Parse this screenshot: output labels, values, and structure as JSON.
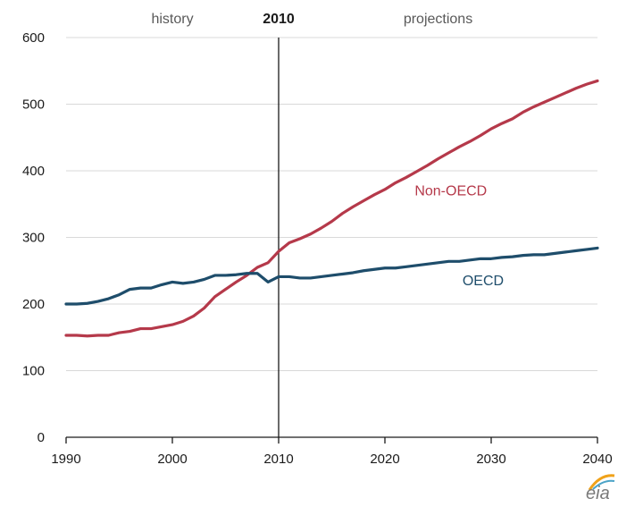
{
  "chart_data": {
    "type": "line",
    "title": "",
    "xlabel": "",
    "ylabel": "",
    "xlim": [
      1990,
      2040
    ],
    "ylim": [
      0,
      600
    ],
    "x_ticks": [
      1990,
      2000,
      2010,
      2020,
      2030,
      2040
    ],
    "y_ticks": [
      0,
      100,
      200,
      300,
      400,
      500,
      600
    ],
    "grid": "horizontal",
    "divider": {
      "x": 2010,
      "label": "2010"
    },
    "regions": {
      "left": "history",
      "right": "projections"
    },
    "series": [
      {
        "name": "Non-OECD",
        "color": "#b5394a",
        "x": [
          1990,
          1991,
          1992,
          1993,
          1994,
          1995,
          1996,
          1997,
          1998,
          1999,
          2000,
          2001,
          2002,
          2003,
          2004,
          2005,
          2006,
          2007,
          2008,
          2009,
          2010,
          2011,
          2012,
          2013,
          2014,
          2015,
          2016,
          2017,
          2018,
          2019,
          2020,
          2021,
          2022,
          2023,
          2024,
          2025,
          2026,
          2027,
          2028,
          2029,
          2030,
          2031,
          2032,
          2033,
          2034,
          2035,
          2036,
          2037,
          2038,
          2039,
          2040
        ],
        "values": [
          153,
          153,
          152,
          153,
          153,
          157,
          159,
          163,
          163,
          166,
          169,
          174,
          182,
          194,
          211,
          222,
          233,
          243,
          255,
          262,
          279,
          292,
          298,
          305,
          314,
          324,
          336,
          346,
          355,
          364,
          372,
          382,
          390,
          399,
          408,
          418,
          427,
          436,
          444,
          453,
          463,
          471,
          478,
          488,
          496,
          503,
          510,
          517,
          524,
          530,
          535
        ]
      },
      {
        "name": "OECD",
        "color": "#1e4d6b",
        "x": [
          1990,
          1991,
          1992,
          1993,
          1994,
          1995,
          1996,
          1997,
          1998,
          1999,
          2000,
          2001,
          2002,
          2003,
          2004,
          2005,
          2006,
          2007,
          2008,
          2009,
          2010,
          2011,
          2012,
          2013,
          2014,
          2015,
          2016,
          2017,
          2018,
          2019,
          2020,
          2021,
          2022,
          2023,
          2024,
          2025,
          2026,
          2027,
          2028,
          2029,
          2030,
          2031,
          2032,
          2033,
          2034,
          2035,
          2036,
          2037,
          2038,
          2039,
          2040
        ],
        "values": [
          200,
          200,
          201,
          204,
          208,
          214,
          222,
          224,
          224,
          229,
          233,
          231,
          233,
          237,
          243,
          243,
          244,
          246,
          246,
          233,
          241,
          241,
          239,
          239,
          241,
          243,
          245,
          247,
          250,
          252,
          254,
          254,
          256,
          258,
          260,
          262,
          264,
          264,
          266,
          268,
          268,
          270,
          271,
          273,
          274,
          274,
          276,
          278,
          280,
          282,
          284
        ]
      }
    ]
  },
  "colors": {
    "non_oecd": "#b5394a",
    "oecd": "#1e4d6b",
    "grid": "#d9d9d9",
    "axis": "#1a1a1a"
  },
  "logo": {
    "text": "eia",
    "icon": "eia-logo-icon"
  }
}
